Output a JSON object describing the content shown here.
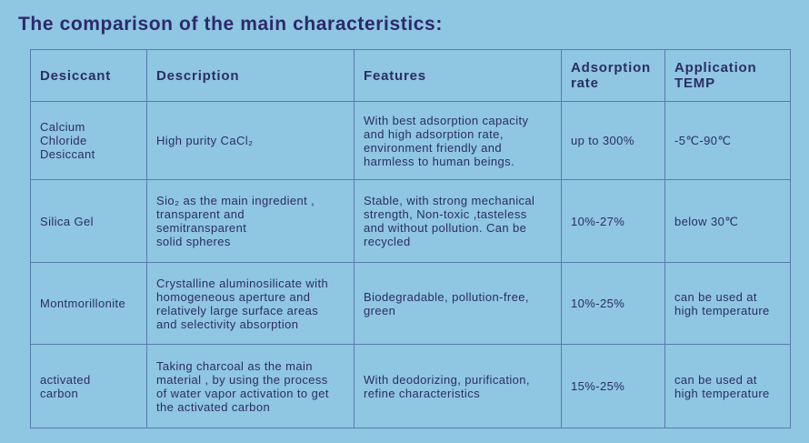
{
  "title": "The comparison of the main characteristics:",
  "table": {
    "headers": [
      "Desiccant",
      "Description",
      "Features",
      "Adsorption\nrate",
      "Application\nTEMP"
    ],
    "rows": [
      {
        "desiccant": "Calcium\nChloride\nDesiccant",
        "description": "High purity CaCl₂",
        "features": "With best adsorption capacity\nand high adsorption rate,\nenvironment friendly and\nharmless to human beings.",
        "rate": "up to 300%",
        "temp": "-5℃-90℃"
      },
      {
        "desiccant": "Silica Gel",
        "description": "Sio₂ as the main ingredient ,\ntransparent and\nsemitransparent\nsolid spheres",
        "features": "Stable, with strong mechanical\nstrength, Non-toxic ,tasteless\nand without pollution. Can be\nrecycled",
        "rate": "10%-27%",
        "temp": "below 30℃"
      },
      {
        "desiccant": "Montmorillonite",
        "description": "Crystalline aluminosilicate with\nhomogeneous aperture and\nrelatively large surface areas\nand selectivity absorption",
        "features": "Biodegradable, pollution-free,\ngreen",
        "rate": "10%-25%",
        "temp": "can be used at\nhigh temperature"
      },
      {
        "desiccant": "activated\ncarbon",
        "description": "Taking charcoal as the main\nmaterial , by using the process\nof water vapor activation to get\nthe activated carbon",
        "features": "With deodorizing, purification,\nrefine characteristics",
        "rate": "15%-25%",
        "temp": "can be used at\nhigh temperature"
      }
    ]
  }
}
